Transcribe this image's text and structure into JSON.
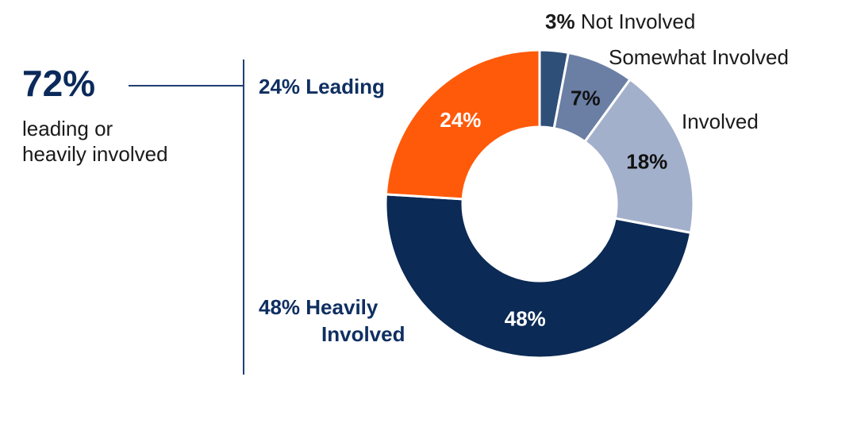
{
  "summary": {
    "value": "72%",
    "label_line1": "leading or",
    "label_line2": "heavily involved"
  },
  "callouts": {
    "leading": "24% Leading",
    "heavy_pct": "48%",
    "heavy_word1": "Heavily",
    "heavy_word2": "Involved"
  },
  "side_labels": {
    "not_involved_pct": "3%",
    "not_involved_text": "Not Involved",
    "somewhat": "Somewhat Involved",
    "involved": "Involved"
  },
  "chart_data": {
    "type": "pie",
    "donut": true,
    "categories": [
      "Not Involved",
      "Somewhat Involved",
      "Involved",
      "Heavily Involved",
      "Leading"
    ],
    "values": [
      3,
      7,
      18,
      48,
      24
    ],
    "data_labels": [
      "",
      "7%",
      "18%",
      "48%",
      "24%"
    ],
    "colors": [
      "#2e4f78",
      "#6b7fa5",
      "#a3b0cb",
      "#0b2a55",
      "#ff5a0a"
    ],
    "label_colors": [
      "#ffffff",
      "#111111",
      "#111111",
      "#ffffff",
      "#ffffff"
    ],
    "start_angle_deg": 0,
    "direction": "clockwise"
  }
}
